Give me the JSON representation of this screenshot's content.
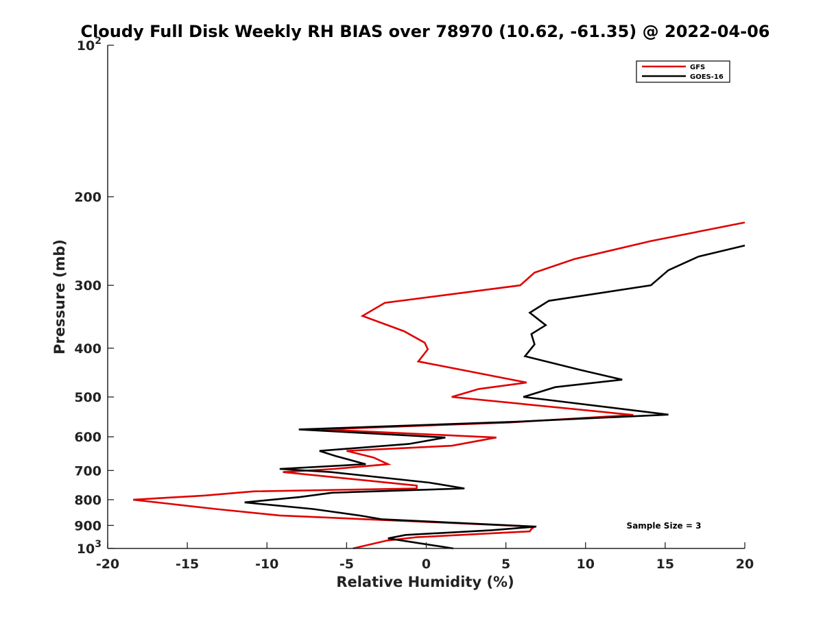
{
  "chart_data": {
    "type": "line",
    "title": "Cloudy Full Disk Weekly RH BIAS over 78970 (10.62, -61.35) @ 2022-04-06",
    "xlabel": "Relative Humidity (%)",
    "ylabel": "Pressure (mb)",
    "xlim": [
      -20,
      20
    ],
    "ylim": [
      1000,
      100
    ],
    "yscale": "log",
    "y_reversed": true,
    "x_ticks": [
      "-20",
      "-15",
      "-10",
      "-5",
      "0",
      "5",
      "10",
      "15",
      "20"
    ],
    "y_ticks": [
      {
        "value": 100,
        "label": "10",
        "sup": "2"
      },
      {
        "value": 200,
        "label": "200",
        "sup": ""
      },
      {
        "value": 300,
        "label": "300",
        "sup": ""
      },
      {
        "value": 400,
        "label": "400",
        "sup": ""
      },
      {
        "value": 500,
        "label": "500",
        "sup": ""
      },
      {
        "value": 600,
        "label": "600",
        "sup": ""
      },
      {
        "value": 700,
        "label": "700",
        "sup": ""
      },
      {
        "value": 800,
        "label": "800",
        "sup": ""
      },
      {
        "value": 900,
        "label": "900",
        "sup": ""
      },
      {
        "value": 1000,
        "label": "10",
        "sup": "3"
      }
    ],
    "grid": false,
    "legend_position": "top-right",
    "annotation": "Sample Size = 3",
    "series": [
      {
        "name": "GFS",
        "color": "#e00000",
        "points": [
          [
            20,
            225
          ],
          [
            14.1,
            245
          ],
          [
            9.3,
            266
          ],
          [
            6.8,
            283
          ],
          [
            5.9,
            300
          ],
          [
            -2.6,
            325
          ],
          [
            -4.0,
            345
          ],
          [
            -1.4,
            370
          ],
          [
            -0.1,
            390
          ],
          [
            0.1,
            402
          ],
          [
            -0.5,
            425
          ],
          [
            6.3,
            468
          ],
          [
            3.3,
            482
          ],
          [
            1.6,
            500
          ],
          [
            13.0,
            543
          ],
          [
            5.2,
            562
          ],
          [
            -6.6,
            580
          ],
          [
            4.4,
            602
          ],
          [
            1.6,
            625
          ],
          [
            -5.0,
            640
          ],
          [
            -3.3,
            660
          ],
          [
            -2.4,
            680
          ],
          [
            -5.8,
            695
          ],
          [
            -9.0,
            705
          ],
          [
            -0.6,
            750
          ],
          [
            -0.6,
            760
          ],
          [
            -10.8,
            770
          ],
          [
            -13.9,
            785
          ],
          [
            -18.4,
            800
          ],
          [
            -13.2,
            835
          ],
          [
            -9.2,
            860
          ],
          [
            6.8,
            905
          ],
          [
            6.6,
            915
          ],
          [
            6.5,
            925
          ],
          [
            -0.6,
            950
          ],
          [
            -2.5,
            965
          ],
          [
            -4.6,
            1000
          ]
        ]
      },
      {
        "name": "GOES-16",
        "color": "#000000",
        "points": [
          [
            20,
            250
          ],
          [
            17.1,
            263
          ],
          [
            15.2,
            280
          ],
          [
            14.1,
            300
          ],
          [
            7.7,
            322
          ],
          [
            6.5,
            340
          ],
          [
            7.5,
            360
          ],
          [
            6.6,
            375
          ],
          [
            6.8,
            393
          ],
          [
            6.2,
            415
          ],
          [
            9.7,
            442
          ],
          [
            12.3,
            462
          ],
          [
            8.1,
            478
          ],
          [
            6.1,
            500
          ],
          [
            15.2,
            542
          ],
          [
            5.6,
            560
          ],
          [
            -8.0,
            580
          ],
          [
            1.2,
            602
          ],
          [
            -1.1,
            620
          ],
          [
            -6.7,
            640
          ],
          [
            -5.7,
            655
          ],
          [
            -3.8,
            680
          ],
          [
            -9.2,
            695
          ],
          [
            -6.0,
            705
          ],
          [
            0.2,
            740
          ],
          [
            2.4,
            760
          ],
          [
            -5.9,
            775
          ],
          [
            -7.9,
            790
          ],
          [
            -11.4,
            810
          ],
          [
            -7.1,
            835
          ],
          [
            -4.2,
            860
          ],
          [
            -2.8,
            875
          ],
          [
            6.9,
            905
          ],
          [
            4.1,
            920
          ],
          [
            -1.3,
            940
          ],
          [
            -2.4,
            955
          ],
          [
            1.7,
            1000
          ]
        ]
      }
    ]
  }
}
